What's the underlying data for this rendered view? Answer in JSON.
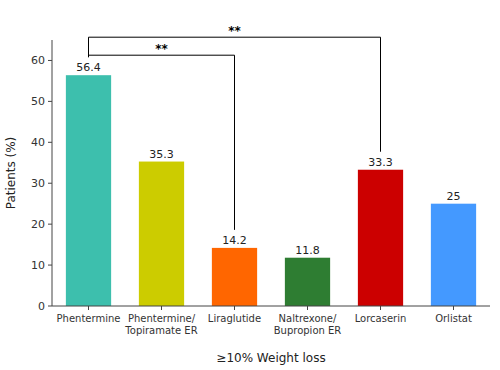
{
  "chart_data": {
    "type": "bar",
    "categories": [
      "Phentermine",
      "Phentermine/\nTopiramate ER",
      "Liraglutide",
      "Naltrexone/\nBupropion ER",
      "Lorcaserin",
      "Orlistat"
    ],
    "values": [
      56.4,
      35.3,
      14.2,
      11.8,
      33.3,
      25
    ],
    "colors": [
      "#3DBFAD",
      "#CCCC00",
      "#FF6600",
      "#2E7D32",
      "#CC0000",
      "#4499FF"
    ],
    "xlabel": "≥10% Weight loss",
    "ylabel": "Patients (%)",
    "ylim": [
      0,
      65
    ],
    "yticks": [
      0,
      10,
      20,
      30,
      40,
      50,
      60
    ],
    "grid": false,
    "data_labels": true,
    "annotations": [
      {
        "text": "**",
        "from": "Phentermine",
        "to": "Liraglutide"
      },
      {
        "text": "**",
        "from": "Phentermine",
        "to": "Lorcaserin"
      }
    ]
  }
}
